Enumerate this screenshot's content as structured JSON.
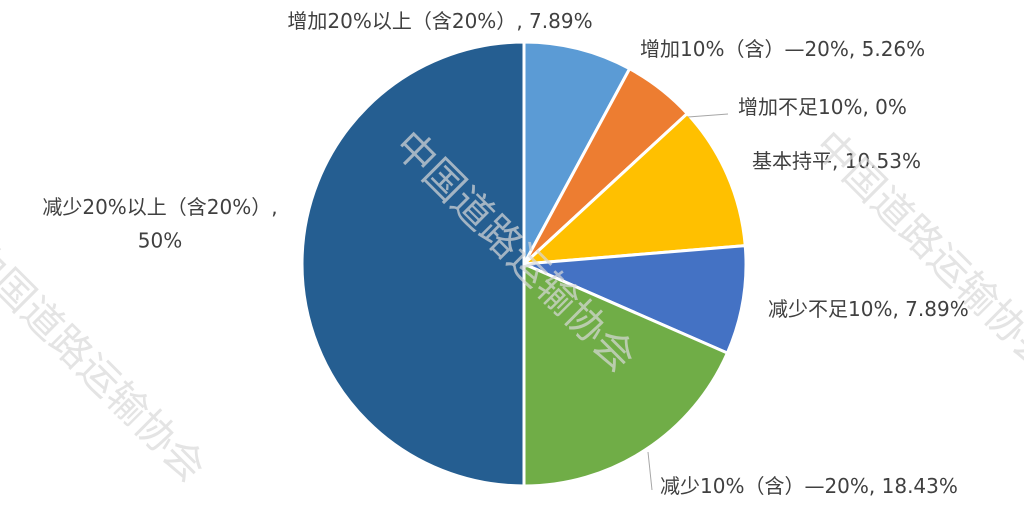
{
  "chart_data": {
    "type": "pie",
    "categories": [
      "增加20%以上（含20%）",
      "增加10%（含）—20%",
      "增加不足10%",
      "基本持平",
      "减少不足10%",
      "减少10%（含）—20%",
      "减少20%以上（含20%）"
    ],
    "values": [
      7.89,
      5.26,
      0,
      10.53,
      7.89,
      18.43,
      50
    ],
    "value_labels": [
      "7.89%",
      "5.26%",
      "0%",
      "10.53%",
      "7.89%",
      "18.43%",
      "50%"
    ],
    "label_separator": ", ",
    "colors": [
      "#5b9bd5",
      "#ed7d31",
      "#a5a5a5",
      "#ffc000",
      "#4472c4",
      "#70ad47",
      "#255e91"
    ],
    "watermark": "中国道路运输协会"
  }
}
